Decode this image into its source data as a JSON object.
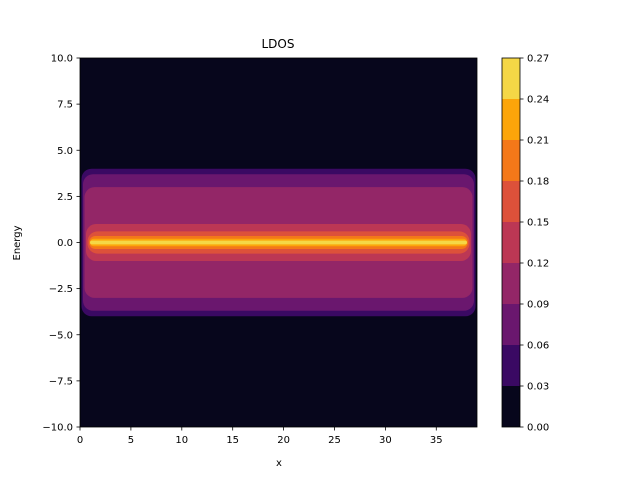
{
  "chart_data": {
    "type": "heatmap",
    "style": "filled-contour",
    "title": "LDOS",
    "xlabel": "x",
    "ylabel": "Energy",
    "xlim": [
      0,
      39
    ],
    "ylim": [
      -10,
      10
    ],
    "xticks": [
      0,
      5,
      10,
      15,
      20,
      25,
      30,
      35
    ],
    "xtick_labels": [
      "0",
      "5",
      "10",
      "15",
      "20",
      "25",
      "30",
      "35"
    ],
    "yticks": [
      10,
      7.5,
      5,
      2.5,
      0,
      -2.5,
      -5,
      -7.5,
      -10
    ],
    "ytick_labels": [
      "10.0",
      "7.5",
      "5.0",
      "2.5",
      "0.0",
      "−2.5",
      "−5.0",
      "−7.5",
      "−10.0"
    ],
    "colormap": "inferno",
    "colorbar": {
      "levels": [
        0.0,
        0.03,
        0.06,
        0.09,
        0.12,
        0.15,
        0.18,
        0.21,
        0.24,
        0.27
      ],
      "tick_labels": [
        "0.00",
        "0.03",
        "0.06",
        "0.09",
        "0.12",
        "0.15",
        "0.18",
        "0.21",
        "0.24",
        "0.27"
      ],
      "colors": [
        "#07061c",
        "#3a0963",
        "#6a176e",
        "#932667",
        "#bc3754",
        "#dd513a",
        "#f37819",
        "#fca50a",
        "#f5d746"
      ]
    },
    "structure": [
      {
        "level_index": 0,
        "energy_band": [
          -10,
          10
        ]
      },
      {
        "level_index": 1,
        "energy_band": [
          -4.0,
          4.0
        ]
      },
      {
        "level_index": 2,
        "energy_band": [
          -3.7,
          3.7
        ]
      },
      {
        "level_index": 3,
        "energy_band": [
          -3.0,
          3.0
        ]
      },
      {
        "level_index": 4,
        "energy_band": [
          -1.0,
          1.0
        ]
      },
      {
        "level_index": 5,
        "energy_band": [
          -0.6,
          0.6
        ]
      },
      {
        "level_index": 6,
        "energy_band": [
          -0.35,
          0.35
        ]
      },
      {
        "level_index": 7,
        "energy_band": [
          -0.2,
          0.2
        ]
      },
      {
        "level_index": 8,
        "energy_band": [
          -0.1,
          0.1
        ]
      }
    ]
  }
}
